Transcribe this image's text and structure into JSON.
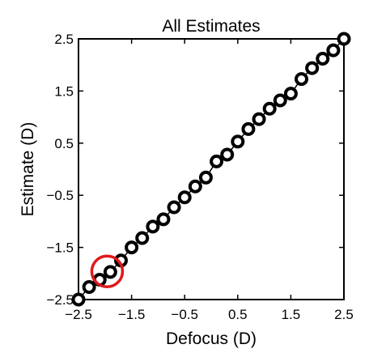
{
  "chart_data": {
    "type": "scatter",
    "title": "All Estimates",
    "xlabel": "Defocus (D)",
    "ylabel": "Estimate (D)",
    "xlim": [
      -2.5,
      2.5
    ],
    "ylim": [
      -2.5,
      2.5
    ],
    "xticks": [
      -2.5,
      -1.5,
      -0.5,
      0.5,
      1.5,
      2.5
    ],
    "yticks": [
      -2.5,
      -1.5,
      -0.5,
      0.5,
      1.5,
      2.5
    ],
    "xtick_labels": [
      "−2.5",
      "−1.5",
      "−0.5",
      "0.5",
      "1.5",
      "2.5"
    ],
    "ytick_labels": [
      "−2.5",
      "−1.5",
      "−0.5",
      "0.5",
      "1.5",
      "2.5"
    ],
    "grid": false,
    "series": [
      {
        "x": [
          -2.5,
          -2.3,
          -2.1,
          -1.9,
          -1.7,
          -1.5,
          -1.3,
          -1.1,
          -0.9,
          -0.7,
          -0.5,
          -0.3,
          -0.1,
          0.1,
          0.3,
          0.5,
          0.7,
          0.9,
          1.1,
          1.3,
          1.5,
          1.7,
          1.9,
          2.1,
          2.3,
          2.5
        ],
        "y": [
          -2.5,
          -2.26,
          -2.12,
          -1.97,
          -1.75,
          -1.5,
          -1.32,
          -1.1,
          -0.96,
          -0.73,
          -0.54,
          -0.33,
          -0.16,
          0.15,
          0.28,
          0.53,
          0.77,
          0.96,
          1.16,
          1.32,
          1.45,
          1.73,
          1.94,
          2.12,
          2.28,
          2.5
        ],
        "color": "#000000"
      }
    ],
    "annotations": [
      {
        "type": "circle",
        "x": -1.96,
        "y": -1.96,
        "color": "#e0191b"
      }
    ]
  }
}
